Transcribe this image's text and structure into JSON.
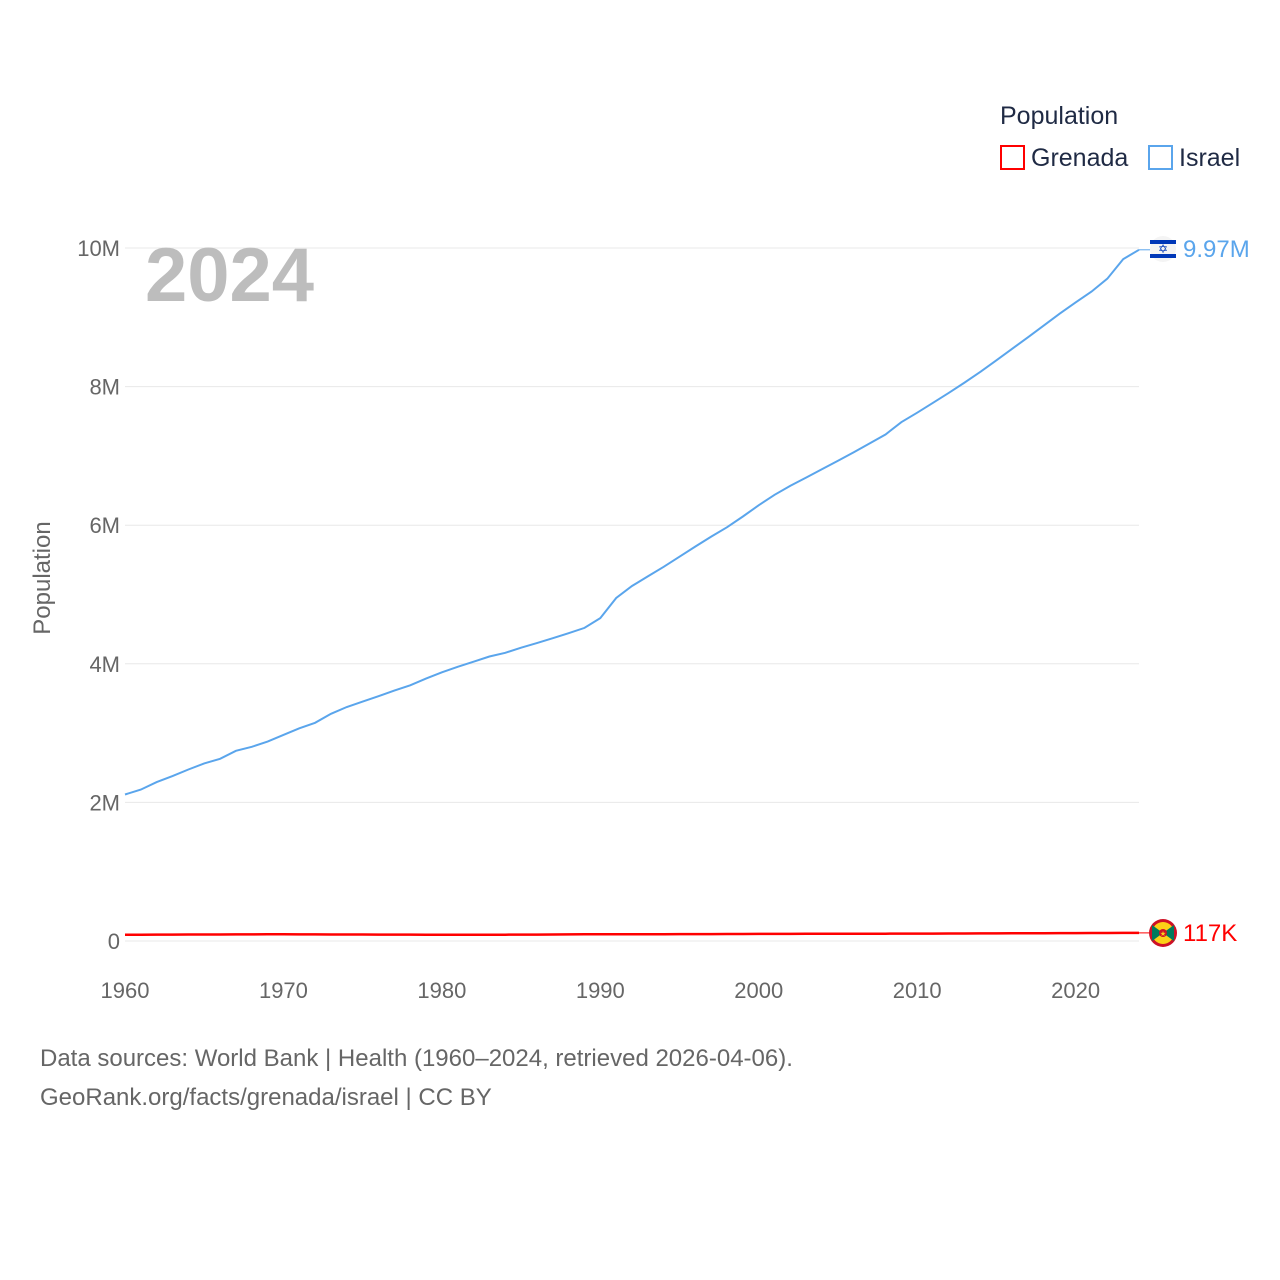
{
  "chart_data": {
    "type": "line",
    "title": "",
    "year_label": "2024",
    "xlabel": "",
    "ylabel": "Population",
    "xlim": [
      1960,
      2024
    ],
    "ylim": [
      0,
      10000000
    ],
    "x_ticks": [
      "1960",
      "1970",
      "1980",
      "1990",
      "2000",
      "2010",
      "2020"
    ],
    "y_ticks": [
      {
        "v": 0,
        "label": "0"
      },
      {
        "v": 2000000,
        "label": "2M"
      },
      {
        "v": 4000000,
        "label": "4M"
      },
      {
        "v": 6000000,
        "label": "6M"
      },
      {
        "v": 8000000,
        "label": "8M"
      },
      {
        "v": 10000000,
        "label": "10M"
      }
    ],
    "grid": true,
    "legend": {
      "title": "Population",
      "placement": "top-right",
      "entries": [
        {
          "name": "Grenada",
          "color": "#ff0000"
        },
        {
          "name": "Israel",
          "color": "#5aa5ec"
        }
      ]
    },
    "x": [
      1960,
      1961,
      1962,
      1963,
      1964,
      1965,
      1966,
      1967,
      1968,
      1969,
      1970,
      1971,
      1972,
      1973,
      1974,
      1975,
      1976,
      1977,
      1978,
      1979,
      1980,
      1981,
      1982,
      1983,
      1984,
      1985,
      1986,
      1987,
      1988,
      1989,
      1990,
      1991,
      1992,
      1993,
      1994,
      1995,
      1996,
      1997,
      1998,
      1999,
      2000,
      2001,
      2002,
      2003,
      2004,
      2005,
      2006,
      2007,
      2008,
      2009,
      2010,
      2011,
      2012,
      2013,
      2014,
      2015,
      2016,
      2017,
      2018,
      2019,
      2020,
      2021,
      2022,
      2023,
      2024
    ],
    "series": [
      {
        "name": "Israel",
        "color": "#5aa5ec",
        "end_label": "9.97M",
        "values": [
          2114000,
          2185000,
          2293000,
          2379000,
          2475000,
          2563000,
          2629000,
          2745000,
          2803000,
          2877000,
          2974000,
          3069000,
          3148000,
          3278000,
          3377000,
          3455000,
          3533000,
          3613000,
          3690000,
          3786000,
          3878000,
          3956000,
          4031000,
          4105000,
          4159000,
          4233000,
          4299000,
          4369000,
          4442000,
          4518000,
          4660000,
          4949000,
          5123000,
          5261000,
          5399000,
          5545000,
          5692000,
          5836000,
          5971000,
          6125000,
          6289000,
          6439000,
          6570000,
          6689000,
          6809000,
          6930000,
          7054000,
          7180000,
          7309000,
          7486000,
          7623000,
          7766000,
          7911000,
          8059000,
          8215000,
          8380000,
          8547000,
          8713000,
          8883000,
          9054000,
          9215000,
          9371000,
          9557000,
          9840000,
          9974000
        ]
      },
      {
        "name": "Grenada",
        "color": "#ff0000",
        "end_label": "117K",
        "values": [
          90000,
          91000,
          92000,
          93000,
          93500,
          94000,
          94500,
          95000,
          95500,
          96000,
          96000,
          95500,
          95000,
          94500,
          94000,
          93500,
          93000,
          92500,
          92000,
          91000,
          89000,
          89000,
          89500,
          90000,
          91000,
          92000,
          93000,
          94000,
          95000,
          96000,
          96500,
          97000,
          97500,
          98000,
          98500,
          99000,
          99500,
          100000,
          100500,
          101000,
          102000,
          102500,
          103000,
          103500,
          104000,
          104500,
          105000,
          105500,
          106000,
          106500,
          107000,
          107500,
          108000,
          108500,
          109000,
          110000,
          111000,
          112000,
          113000,
          114000,
          114500,
          115000,
          116000,
          116500,
          117000
        ]
      }
    ]
  },
  "sources": {
    "line1": "Data sources: World Bank | Health (1960–2024, retrieved 2026-04-06).",
    "line2": "GeoRank.org/facts/grenada/israel | CC BY"
  }
}
